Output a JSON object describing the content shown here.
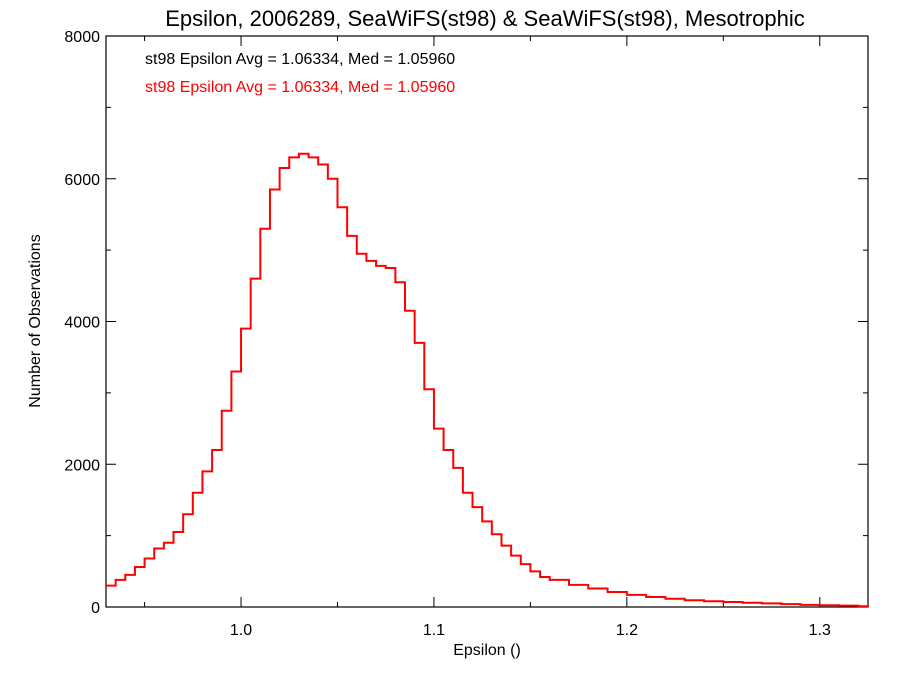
{
  "chart_data": {
    "type": "line",
    "title": "Epsilon, 2006289, SeaWiFS(st98) & SeaWiFS(st98), Mesotrophic",
    "xlabel": "Epsilon ()",
    "ylabel": "Number of Observations",
    "xlim": [
      0.93,
      1.325
    ],
    "ylim": [
      0,
      8000
    ],
    "x_ticks": [
      1.0,
      1.1,
      1.2,
      1.3
    ],
    "x_tick_labels": [
      "1.0",
      "1.1",
      "1.2",
      "1.3"
    ],
    "y_ticks": [
      0,
      2000,
      4000,
      6000,
      8000
    ],
    "y_tick_labels": [
      "0",
      "2000",
      "4000",
      "6000",
      "8000"
    ],
    "legend_placement": "top-left",
    "grid": false,
    "annotations": [
      {
        "text": "st98 Epsilon Avg = 1.06334, Med = 1.05960",
        "color": "#000000"
      },
      {
        "text": "st98 Epsilon Avg = 1.06334, Med = 1.05960",
        "color": "#ff0000"
      }
    ],
    "series": [
      {
        "color": "#ff0000",
        "style": "step",
        "x": [
          0.93,
          0.935,
          0.94,
          0.945,
          0.95,
          0.955,
          0.96,
          0.965,
          0.97,
          0.975,
          0.98,
          0.985,
          0.99,
          0.995,
          1.0,
          1.005,
          1.01,
          1.015,
          1.02,
          1.025,
          1.03,
          1.035,
          1.04,
          1.045,
          1.05,
          1.055,
          1.06,
          1.065,
          1.07,
          1.075,
          1.08,
          1.085,
          1.09,
          1.095,
          1.1,
          1.105,
          1.11,
          1.115,
          1.12,
          1.125,
          1.13,
          1.135,
          1.14,
          1.145,
          1.15,
          1.155,
          1.16,
          1.17,
          1.18,
          1.19,
          1.2,
          1.21,
          1.22,
          1.23,
          1.24,
          1.25,
          1.26,
          1.27,
          1.28,
          1.29,
          1.3,
          1.31,
          1.32,
          1.325
        ],
        "y": [
          300,
          380,
          450,
          560,
          680,
          820,
          900,
          1050,
          1300,
          1600,
          1900,
          2200,
          2750,
          3300,
          3900,
          4600,
          5300,
          5850,
          6150,
          6300,
          6350,
          6300,
          6200,
          6000,
          5600,
          5200,
          4950,
          4850,
          4780,
          4750,
          4550,
          4150,
          3700,
          3050,
          2500,
          2200,
          1950,
          1600,
          1400,
          1200,
          1020,
          860,
          720,
          600,
          500,
          420,
          380,
          310,
          260,
          210,
          170,
          140,
          115,
          95,
          80,
          70,
          60,
          50,
          40,
          30,
          25,
          20,
          10,
          5
        ]
      }
    ]
  }
}
